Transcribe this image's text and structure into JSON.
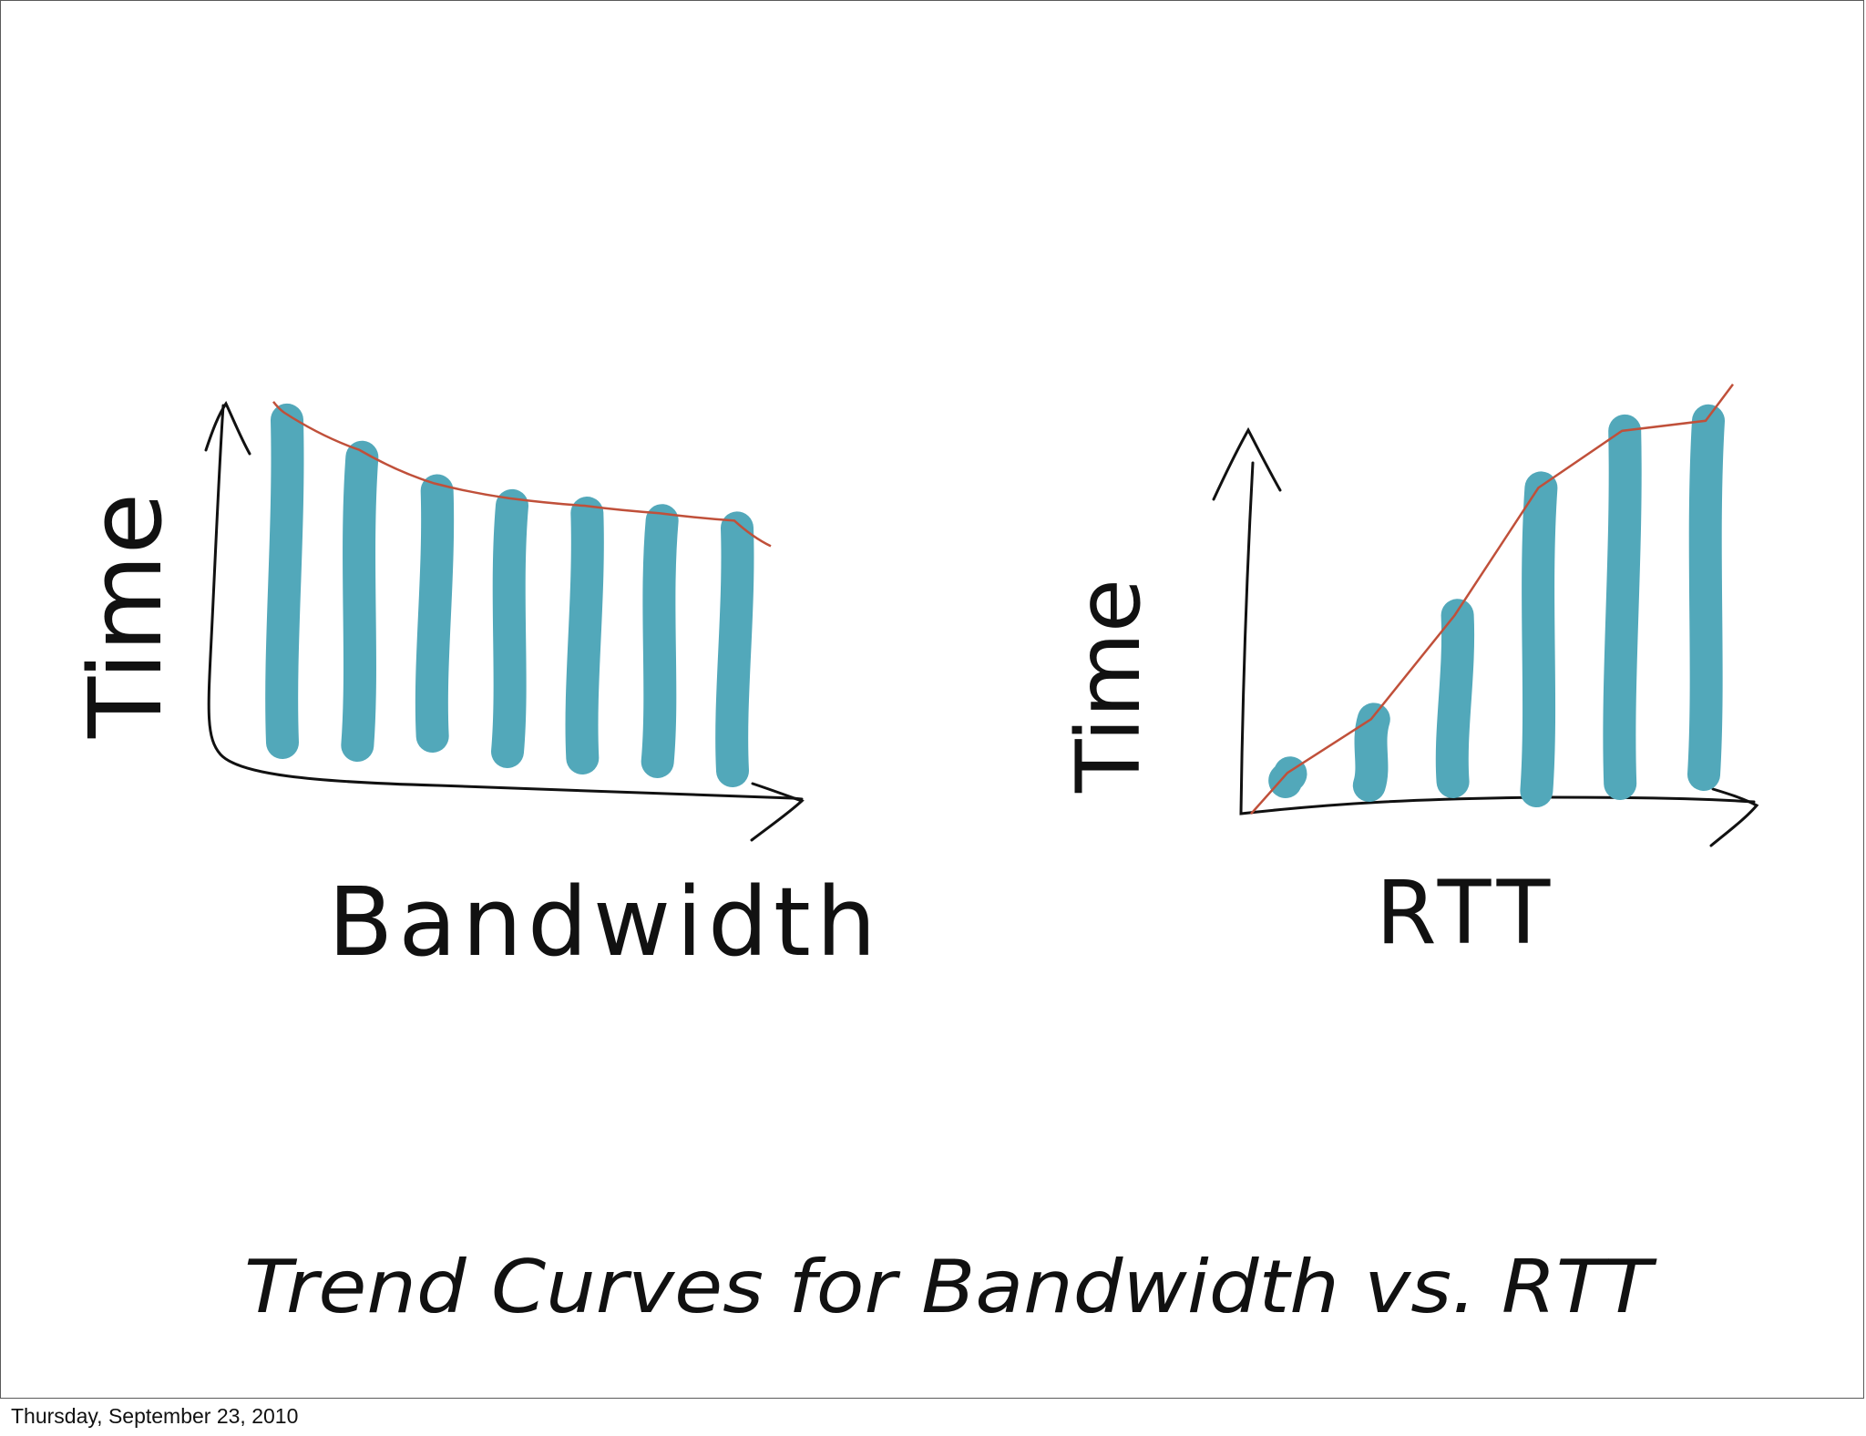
{
  "slide_title": "Trend Curves for Bandwidth vs. RTT",
  "footer_date": "Thursday, September 23, 2010",
  "colors": {
    "bar": "#52a8ba",
    "trend": "#c0503a",
    "ink": "#111111"
  },
  "chart_data": [
    {
      "type": "bar",
      "title": "",
      "xlabel": "Bandwidth",
      "ylabel": "Time",
      "values": [
        10.5,
        9.5,
        8.6,
        8.2,
        8.0,
        7.8,
        7.6
      ],
      "trend": "decreasing curve",
      "ylim": [
        0,
        11.5
      ]
    },
    {
      "type": "bar",
      "title": "",
      "xlabel": "RTT",
      "ylabel": "Time",
      "values": [
        1.0,
        2.6,
        5.7,
        9.5,
        11.2,
        11.5
      ],
      "trend": "increasing line",
      "ylim": [
        0,
        12.5
      ]
    }
  ]
}
